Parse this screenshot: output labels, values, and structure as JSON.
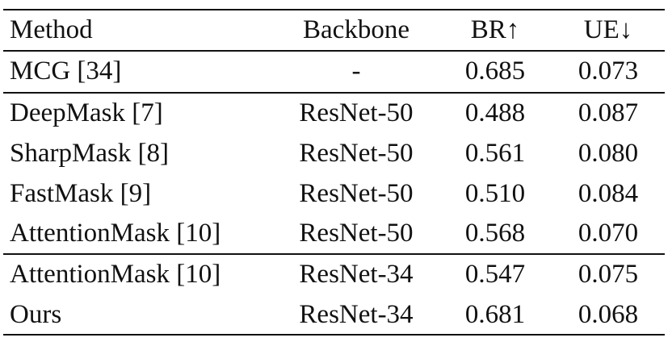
{
  "table": {
    "headers": {
      "method": "Method",
      "backbone": "Backbone",
      "br": "BR↑",
      "ue": "UE↓"
    },
    "rows": [
      {
        "method": "MCG [34]",
        "backbone": "-",
        "br": "0.685",
        "ue": "0.073"
      },
      {
        "method": "DeepMask [7]",
        "backbone": "ResNet-50",
        "br": "0.488",
        "ue": "0.087"
      },
      {
        "method": "SharpMask [8]",
        "backbone": "ResNet-50",
        "br": "0.561",
        "ue": "0.080"
      },
      {
        "method": "FastMask [9]",
        "backbone": "ResNet-50",
        "br": "0.510",
        "ue": "0.084"
      },
      {
        "method": "AttentionMask [10]",
        "backbone": "ResNet-50",
        "br": "0.568",
        "ue": "0.070"
      },
      {
        "method": "AttentionMask [10]",
        "backbone": "ResNet-34",
        "br": "0.547",
        "ue": "0.075"
      },
      {
        "method": "Ours",
        "backbone": "ResNet-34",
        "br": "0.681",
        "ue": "0.068"
      }
    ]
  }
}
